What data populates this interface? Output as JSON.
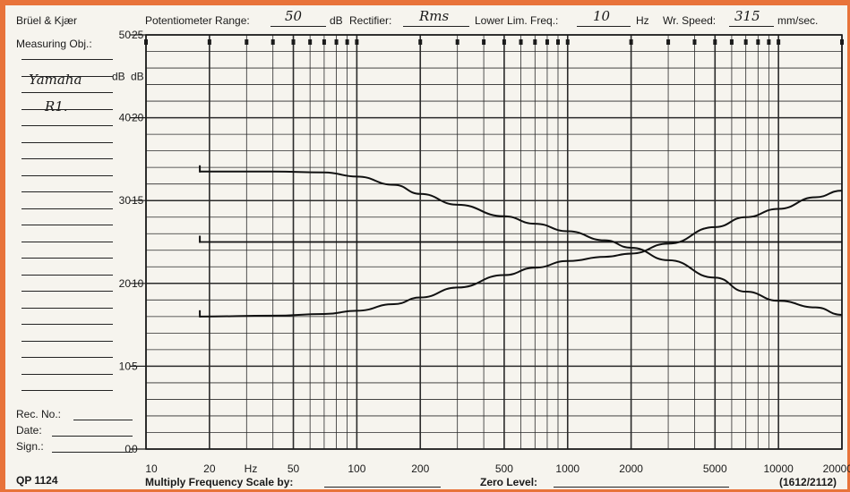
{
  "header": {
    "brand": "Brüel & Kjær",
    "measuring_obj_label": "Measuring Obj.:",
    "measuring_obj_value": "Yamaha",
    "measuring_obj_value2": "R1.",
    "potentiometer_label": "Potentiometer Range:",
    "potentiometer_value": "50",
    "potentiometer_unit": "dB",
    "rectifier_label": "Rectifier:",
    "rectifier_value": "Rms",
    "lower_lim_label": "Lower Lim. Freq.:",
    "lower_lim_value": "10",
    "lower_lim_unit": "Hz",
    "speed_label": "Wr. Speed:",
    "speed_value": "315",
    "speed_unit": "mm/sec."
  },
  "footer": {
    "rec_no_label": "Rec. No.:",
    "date_label": "Date:",
    "sign_label": "Sign.:",
    "form_code": "QP 1124",
    "multiply_label": "Multiply Frequency Scale by:",
    "zero_level_label": "Zero Level:",
    "ref_code": "(1612/2112)"
  },
  "chart_data": {
    "type": "line",
    "title": "",
    "xlabel": "Hz",
    "ylabel": "dB",
    "x_scale": "log",
    "xlim": [
      10,
      20000
    ],
    "ylim_outer": [
      0,
      50
    ],
    "ylim_inner": [
      0,
      25
    ],
    "ytick_labels_outer": [
      "0",
      "10",
      "20",
      "30",
      "40",
      "50"
    ],
    "ytick_labels_inner": [
      "0",
      "5",
      "10",
      "15",
      "20",
      "25"
    ],
    "xtick_labels": [
      "10",
      "20",
      "50",
      "100",
      "200",
      "500",
      "1000",
      "2000",
      "5000",
      "10000",
      "20000"
    ],
    "axis_unit_labels": [
      "dB",
      "dB"
    ],
    "grid": true,
    "series": [
      {
        "x": [
          18,
          40,
          70,
          100,
          150,
          200,
          300,
          500,
          700,
          1000,
          1500,
          2000,
          3000,
          5000,
          7000,
          10000,
          15000,
          20000
        ],
        "y": [
          16.0,
          16.1,
          16.3,
          16.7,
          17.5,
          18.3,
          19.5,
          21.0,
          21.9,
          22.7,
          23.2,
          23.6,
          24.8,
          26.8,
          28.0,
          29.0,
          30.4,
          31.2
        ]
      },
      {
        "x": [
          18,
          40,
          70,
          100,
          150,
          200,
          300,
          500,
          700,
          1000,
          1500,
          2000,
          3000,
          5000,
          7000,
          10000,
          15000,
          20000
        ],
        "y": [
          33.5,
          33.5,
          33.4,
          32.9,
          31.9,
          30.8,
          29.5,
          28.1,
          27.2,
          26.3,
          25.2,
          24.3,
          22.8,
          20.7,
          19.0,
          17.9,
          17.1,
          16.2
        ]
      },
      {
        "x": [
          18,
          20000
        ],
        "y": [
          25.0,
          25.0
        ]
      }
    ]
  }
}
